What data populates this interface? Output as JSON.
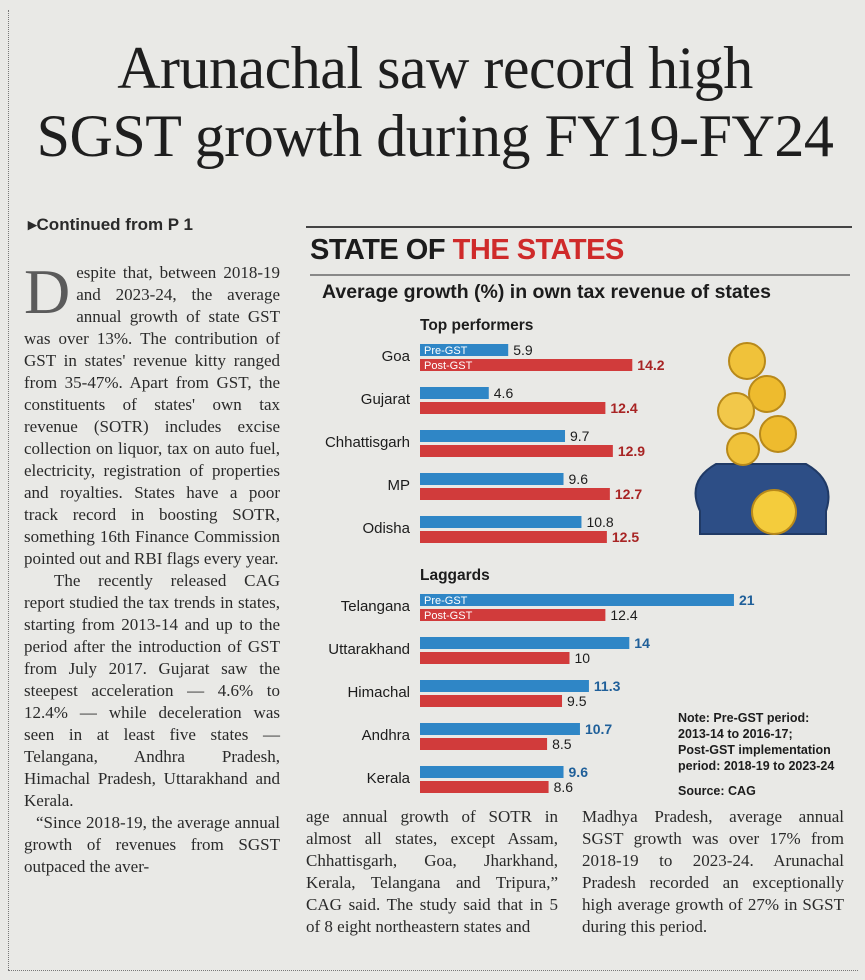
{
  "headline": {
    "line1": "Arunachal saw record high",
    "line2": "SGST growth during FY19-FY24"
  },
  "continued": "▸Continued from P 1",
  "article": {
    "dropcap": "D",
    "col1_p1": "espite that, between 2018-19 and 2023-24, the average annual growth of state GST was over 13%. The contribution of GST in states' revenue kitty ranged from 35-47%. Apart from GST, the constituents of states' own tax revenue (SOTR) includes excise collection on liquor, tax on auto fuel, electricity, registration of properties and royalties. States have a poor track record in boosting SOTR, something 16th Finance Commission pointed out and RBI flags every year.",
    "col1_p2": "The recently released CAG report studied the tax trends in states, starting from 2013-14 and up to the period after the introduction of GST from July 2017. Gujarat saw the steepest acceleration — 4.6% to 12.4% — while deceleration was seen in at least five states — Telangana, Andhra Pradesh, Himachal Pradesh, Uttarakhand and Kerala.",
    "col1_p3": "“Since 2018-19, the average annual growth of revenues from SGST outpaced the aver-",
    "col2": "age annual growth of SOTR in almost all states, except Assam, Chhattisgarh, Goa, Jharkhand, Kerala, Telangana and Tripura,” CAG said. The study said that in 5 of 8 eight northeastern states and",
    "col3": "Madhya Pradesh, average annual SGST growth was over 17% from 2018-19 to 2023-24. Arunachal Pradesh recorded an exceptionally high average growth of 27% in SGST during this period."
  },
  "box": {
    "section_title_a": "STATE OF",
    "section_title_b": "THE STATES"
  },
  "chart_data": {
    "type": "bar",
    "orientation": "horizontal",
    "title": "Average growth (%) in own tax revenue of states",
    "groups": [
      {
        "name": "Top performers",
        "categories": [
          "Goa",
          "Gujarat",
          "Chhattisgarh",
          "MP",
          "Odisha"
        ],
        "series": [
          {
            "name": "Pre-GST",
            "values": [
              5.9,
              4.6,
              9.7,
              9.6,
              10.8
            ]
          },
          {
            "name": "Post-GST",
            "values": [
              14.2,
              12.4,
              12.9,
              12.7,
              12.5
            ]
          }
        ]
      },
      {
        "name": "Laggards",
        "categories": [
          "Telangana",
          "Uttarakhand",
          "Himachal",
          "Andhra",
          "Kerala"
        ],
        "series": [
          {
            "name": "Pre-GST",
            "values": [
              21,
              14,
              11.3,
              10.7,
              9.6
            ]
          },
          {
            "name": "Post-GST",
            "values": [
              12.4,
              10,
              9.5,
              8.5,
              8.6
            ]
          }
        ]
      }
    ],
    "xlim": [
      0,
      21
    ],
    "colors": {
      "pre": "#2f86c6",
      "post": "#d13b3b"
    },
    "note": [
      "Note: Pre-GST period:",
      "2013-14 to 2016-17;",
      "Post-GST implementation",
      "period: 2018-19 to 2023-24"
    ],
    "source": "Source: CAG"
  }
}
